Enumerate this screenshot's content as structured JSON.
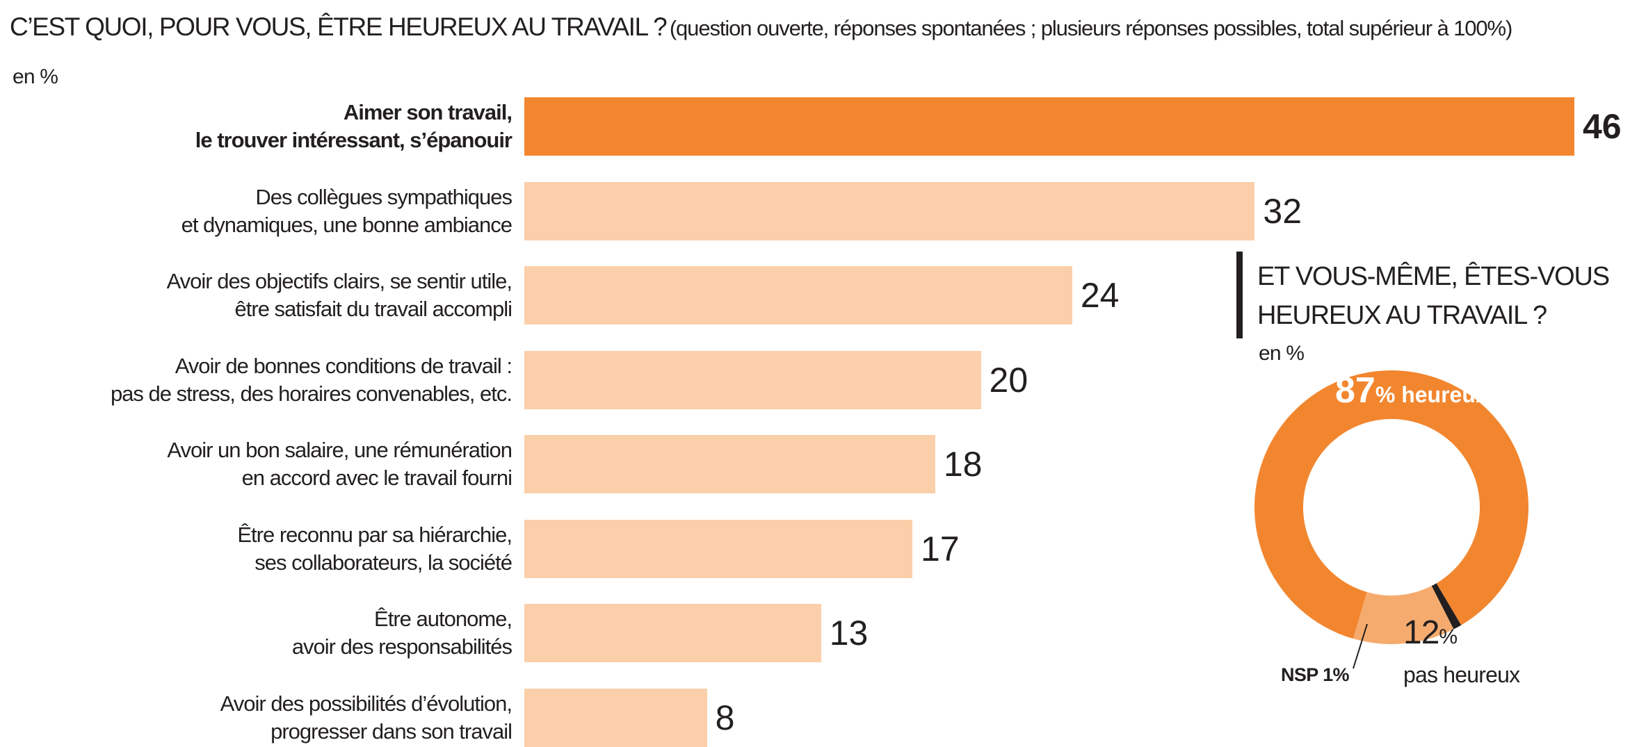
{
  "title": {
    "main": "C’EST QUOI, POUR VOUS, ÊTRE HEUREUX AU TRAVAIL ?",
    "sub": "(question ouverte, réponses spontanées ; plusieurs réponses possibles, total supérieur à 100%)"
  },
  "unit": "en %",
  "colors": {
    "highlight": "#f2862f",
    "light": "#fbcfa9",
    "text": "#231f20",
    "donut_main": "#f2862f",
    "donut_minor": "#f6ab6e",
    "donut_nsp": "#231f20"
  },
  "chart_data": [
    {
      "type": "bar",
      "orientation": "horizontal",
      "categories": [
        [
          "Aimer son travail,",
          "le trouver intéressant, s’épanouir"
        ],
        [
          "Des collègues sympathiques",
          "et dynamiques, une bonne ambiance"
        ],
        [
          "Avoir des objectifs clairs, se sentir utile,",
          "être satisfait du travail accompli"
        ],
        [
          "Avoir de bonnes conditions de travail :",
          "pas de stress, des horaires convenables, etc."
        ],
        [
          "Avoir un bon salaire, une rémunération",
          "en accord avec le travail fourni"
        ],
        [
          "Être reconnu par sa hiérarchie,",
          "ses collaborateurs, la société"
        ],
        [
          "Être autonome,",
          "avoir des responsabilités"
        ],
        [
          "Avoir des possibilités d’évolution,",
          "progresser dans son travail"
        ]
      ],
      "values": [
        46,
        32,
        24,
        20,
        18,
        17,
        13,
        8
      ],
      "value_labels": [
        "46",
        "32",
        "24",
        "20",
        "18",
        "17",
        "13",
        "8"
      ],
      "highlight_index": 0,
      "xlim": [
        0,
        46
      ],
      "grid": false,
      "legend": "none"
    },
    {
      "type": "pie",
      "style": "donut",
      "title": [
        "ET VOUS-MÊME, ÊTES-VOUS",
        "HEUREUX AU TRAVAIL ?"
      ],
      "unit": "en %",
      "slices": [
        {
          "label": "heureux",
          "value": 87,
          "value_text": "87",
          "pct_sign": "%",
          "suffix": " heureux"
        },
        {
          "label": "pas heureux",
          "value": 12,
          "value_text": "12",
          "pct_sign": "%",
          "suffix": "pas heureux"
        },
        {
          "label": "NSP",
          "value": 1,
          "text": "NSP 1%"
        }
      ]
    }
  ]
}
